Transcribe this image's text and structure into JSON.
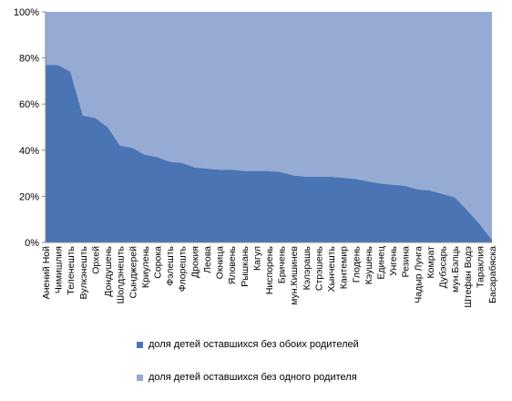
{
  "chart_data": {
    "type": "area",
    "stacked_percent": true,
    "categories": [
      "Анений Ной",
      "Чимишлия",
      "Теленешть",
      "Вулкэнешть",
      "Орхей",
      "Дондушень",
      "Шолдэнешть",
      "Сынджерей",
      "Криулень",
      "Сорока",
      "Фэлешть",
      "Флорешть",
      "Дрокия",
      "Леова",
      "Окница",
      "Яловень",
      "Рышкань",
      "Кагул",
      "Ниспорень",
      "Бричень",
      "мун.Кишинев",
      "Кэлэрашь",
      "Стрэшень",
      "Хынчешть",
      "Кантемир",
      "Глодень",
      "Кэушень",
      "Единец",
      "Унгень",
      "Резина",
      "Чадыр Лунга",
      "Комрат",
      "Дубэсарь",
      "мун.Бэлць",
      "Штефан Водэ",
      "Тараклия",
      "Басарабяска"
    ],
    "series": [
      {
        "name": "доля детей оставшихся без обоих родителей",
        "color": "#4a74b4",
        "values": [
          77,
          77,
          74,
          55,
          54,
          50,
          42,
          41,
          38,
          37,
          35,
          34.5,
          32.5,
          32,
          31.5,
          31.5,
          31,
          31,
          31,
          30.5,
          29,
          28.5,
          28.5,
          28.5,
          28,
          27.5,
          26.5,
          25.5,
          25,
          24.5,
          23,
          22.5,
          21,
          19.5,
          14,
          8,
          1
        ]
      },
      {
        "name": "доля детей оставшихся без одного родителя",
        "color": "#95abd4",
        "values": [
          23,
          23,
          26,
          45,
          46,
          50,
          58,
          59,
          62,
          63,
          65,
          65.5,
          67.5,
          68,
          68.5,
          68.5,
          69,
          69,
          69,
          69.5,
          71,
          71.5,
          71.5,
          71.5,
          72,
          72.5,
          73.5,
          74.5,
          75,
          75.5,
          77,
          77.5,
          79,
          80.5,
          86,
          92,
          99
        ]
      }
    ],
    "y_ticks": [
      "0%",
      "20%",
      "40%",
      "60%",
      "80%",
      "100%"
    ],
    "ylim": [
      0,
      100
    ],
    "legend_position": "bottom"
  }
}
